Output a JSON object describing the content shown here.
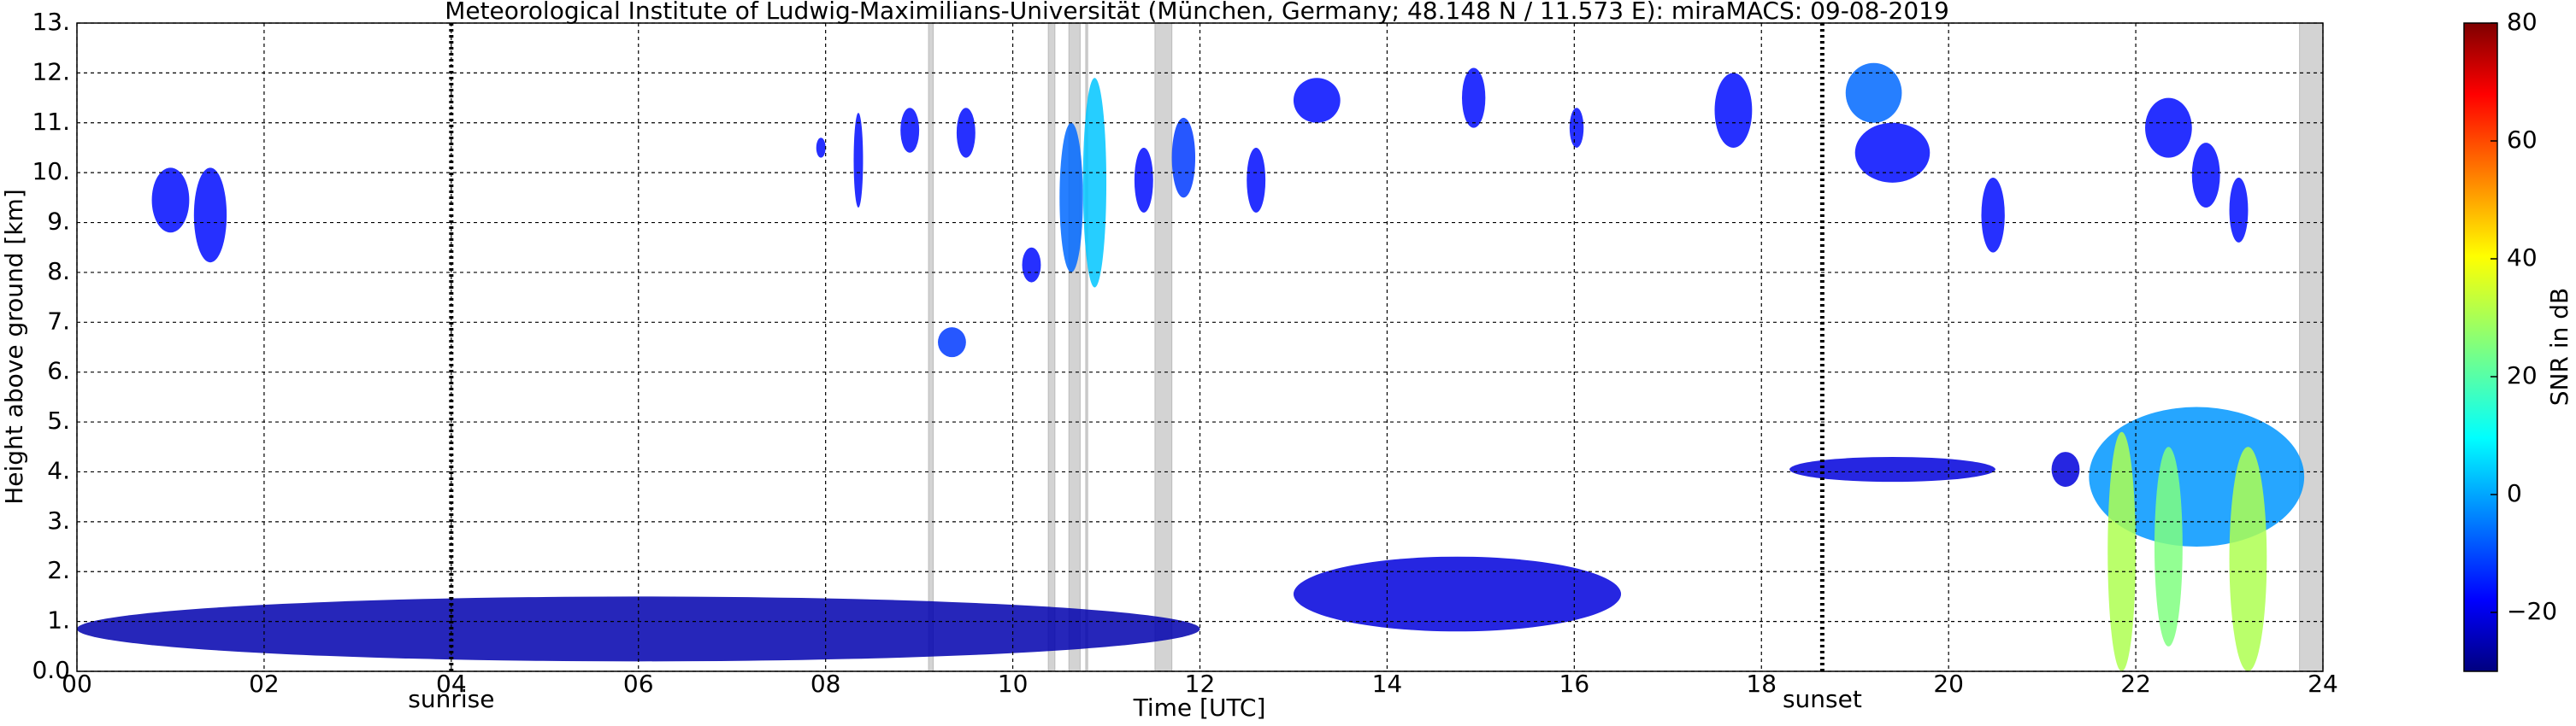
{
  "chart_data": {
    "type": "radar_time_height",
    "title": "Meteorological Institute of Ludwig-Maximilians-Universität (München, Germany; 48.148 N / 11.573 E):    miraMACS: 09-08-2019",
    "x_label": "Time [UTC]",
    "y_label": "Height above ground [km]",
    "colorbar_label": "SNR in dB",
    "xlim": [
      0,
      24
    ],
    "xticks": [
      {
        "value": 0,
        "label": "00"
      },
      {
        "value": 2,
        "label": "02"
      },
      {
        "value": 4,
        "label": "04"
      },
      {
        "value": 6,
        "label": "06"
      },
      {
        "value": 8,
        "label": "08"
      },
      10,
      12,
      14,
      16,
      18,
      20,
      22,
      24
    ],
    "ylim": [
      0,
      13
    ],
    "yticks": [
      {
        "value": 0,
        "label": "0.0"
      },
      {
        "value": 1,
        "label": "1."
      },
      {
        "value": 2,
        "label": "2."
      },
      {
        "value": 3,
        "label": "3."
      },
      {
        "value": 4,
        "label": "4."
      },
      {
        "value": 5,
        "label": "5."
      },
      {
        "value": 6,
        "label": "6."
      },
      {
        "value": 7,
        "label": "7."
      },
      {
        "value": 8,
        "label": "8."
      },
      {
        "value": 9,
        "label": "9."
      },
      {
        "value": 10,
        "label": "10."
      },
      {
        "value": 11,
        "label": "11."
      },
      {
        "value": 12,
        "label": "12."
      },
      {
        "value": 13,
        "label": "13."
      }
    ],
    "clim": [
      -30,
      80
    ],
    "cticks": [
      {
        "value": -20,
        "label": "−20"
      },
      0,
      20,
      40,
      60,
      80
    ],
    "grid": true,
    "markers": [
      {
        "label": "sunrise",
        "t": 4.0
      },
      {
        "label": "sunset",
        "t": 18.65
      }
    ],
    "no_data": [
      [
        9.1,
        9.15
      ],
      [
        10.38,
        10.45
      ],
      [
        10.6,
        10.72
      ],
      [
        10.78,
        10.8
      ],
      [
        11.52,
        11.7
      ],
      [
        23.75,
        24
      ]
    ],
    "echoes": [
      {
        "t": [
          0.8,
          1.2
        ],
        "h": [
          8.8,
          10.1
        ],
        "snr": -15
      },
      {
        "t": [
          1.25,
          1.6
        ],
        "h": [
          8.2,
          10.1
        ],
        "snr": -15
      },
      {
        "t": [
          7.9,
          8.0
        ],
        "h": [
          10.3,
          10.7
        ],
        "snr": -15
      },
      {
        "t": [
          8.3,
          8.4
        ],
        "h": [
          9.3,
          11.2
        ],
        "snr": -15
      },
      {
        "t": [
          8.8,
          9.0
        ],
        "h": [
          10.4,
          11.3
        ],
        "snr": -15
      },
      {
        "t": [
          9.2,
          9.5
        ],
        "h": [
          6.3,
          6.9
        ],
        "snr": -10
      },
      {
        "t": [
          9.4,
          9.6
        ],
        "h": [
          10.3,
          11.3
        ],
        "snr": -15
      },
      {
        "t": [
          10.1,
          10.3
        ],
        "h": [
          7.8,
          8.5
        ],
        "snr": -15
      },
      {
        "t": [
          10.5,
          10.75
        ],
        "h": [
          8.0,
          11.0
        ],
        "snr": -5
      },
      {
        "t": [
          10.75,
          11.0
        ],
        "h": [
          7.7,
          11.9
        ],
        "snr": 5
      },
      {
        "t": [
          11.3,
          11.5
        ],
        "h": [
          9.2,
          10.5
        ],
        "snr": -15
      },
      {
        "t": [
          11.7,
          11.95
        ],
        "h": [
          9.5,
          11.1
        ],
        "snr": -10
      },
      {
        "t": [
          12.5,
          12.7
        ],
        "h": [
          9.2,
          10.5
        ],
        "snr": -15
      },
      {
        "t": [
          13.0,
          13.5
        ],
        "h": [
          11.0,
          11.9
        ],
        "snr": -15
      },
      {
        "t": [
          14.8,
          15.05
        ],
        "h": [
          10.9,
          12.1
        ],
        "snr": -15
      },
      {
        "t": [
          15.95,
          16.1
        ],
        "h": [
          10.5,
          11.3
        ],
        "snr": -15
      },
      {
        "t": [
          17.5,
          17.9
        ],
        "h": [
          10.5,
          12.0
        ],
        "snr": -15
      },
      {
        "t": [
          18.9,
          19.5
        ],
        "h": [
          11.0,
          12.2
        ],
        "snr": -5
      },
      {
        "t": [
          19.0,
          19.8
        ],
        "h": [
          9.8,
          11.0
        ],
        "snr": -15
      },
      {
        "t": [
          20.35,
          20.6
        ],
        "h": [
          8.4,
          9.9
        ],
        "snr": -15
      },
      {
        "t": [
          22.1,
          22.6
        ],
        "h": [
          10.3,
          11.5
        ],
        "snr": -15
      },
      {
        "t": [
          22.6,
          22.9
        ],
        "h": [
          9.3,
          10.6
        ],
        "snr": -15
      },
      {
        "t": [
          23.0,
          23.2
        ],
        "h": [
          8.6,
          9.9
        ],
        "snr": -15
      },
      {
        "t": [
          18.3,
          20.5
        ],
        "h": [
          3.8,
          4.3
        ],
        "snr": -20
      },
      {
        "t": [
          21.1,
          21.4
        ],
        "h": [
          3.7,
          4.4
        ],
        "snr": -20
      },
      {
        "t": [
          21.5,
          23.8
        ],
        "h": [
          2.5,
          5.3
        ],
        "snr": 0
      },
      {
        "t": [
          21.7,
          22.0
        ],
        "h": [
          0,
          4.8
        ],
        "snr": 30
      },
      {
        "t": [
          22.2,
          22.5
        ],
        "h": [
          0.5,
          4.5
        ],
        "snr": 25
      },
      {
        "t": [
          23.0,
          23.4
        ],
        "h": [
          0,
          4.5
        ],
        "snr": 30
      },
      {
        "t": [
          13.0,
          16.5
        ],
        "h": [
          0.8,
          2.3
        ],
        "snr": -20
      },
      {
        "t": [
          0,
          12
        ],
        "h": [
          0.2,
          1.5
        ],
        "snr": -25
      }
    ]
  }
}
